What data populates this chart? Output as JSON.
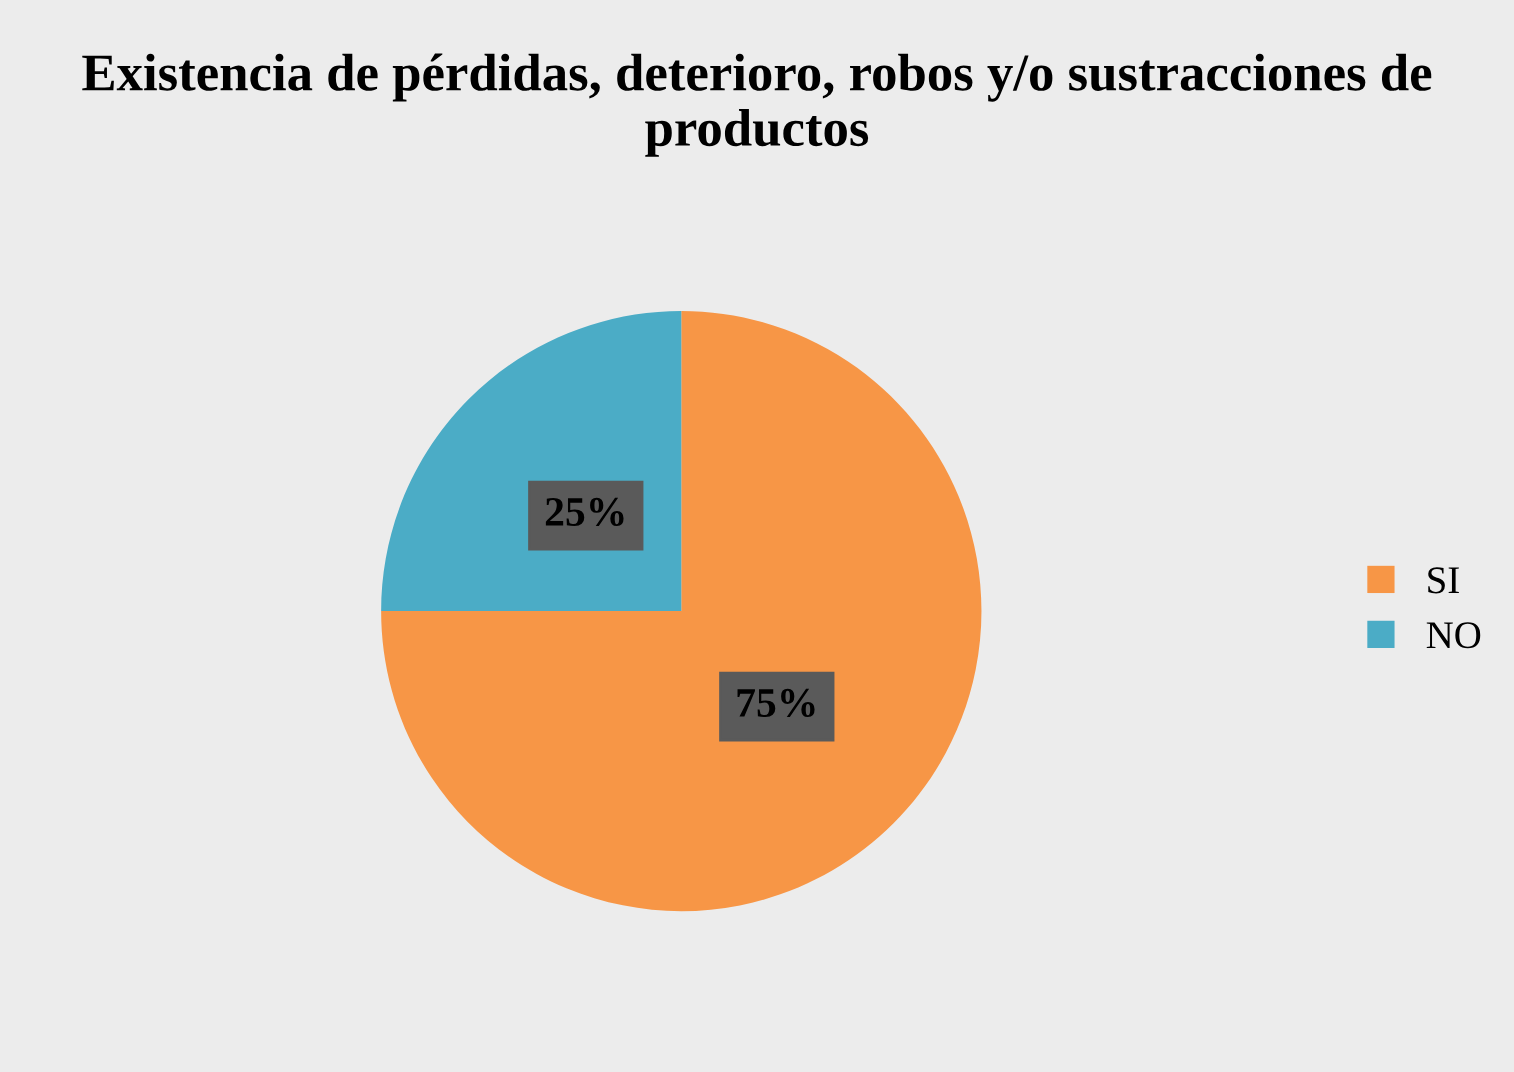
{
  "chart_data": {
    "type": "pie",
    "title": "Existencia de pérdidas, deterioro, robos y/o sustracciones de productos",
    "categories": [
      "SI",
      "NO"
    ],
    "values": [
      75,
      25
    ],
    "colors": [
      "#f79646",
      "#4bacc6"
    ],
    "value_labels": [
      "75%",
      "25%"
    ],
    "legend": "right"
  }
}
